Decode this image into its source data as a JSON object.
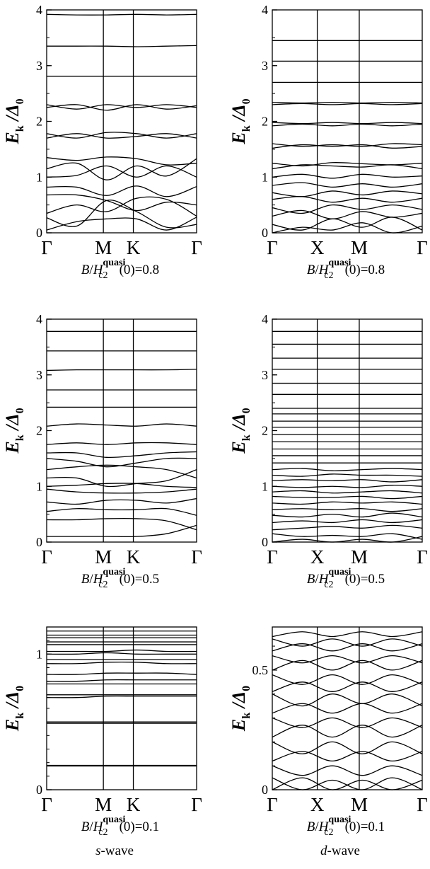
{
  "chart_data": [
    {
      "id": "s-wave-0.8",
      "type": "line",
      "kpath": [
        "Γ",
        "M",
        "K",
        "Γ"
      ],
      "ylabel": {
        "main": "E",
        "sub": "k",
        "denom": "/Δ",
        "denom_sub": "0"
      },
      "ylim": [
        0,
        4
      ],
      "yticks": [
        {
          "v": 0,
          "label": "0"
        },
        {
          "v": 1,
          "label": "1"
        },
        {
          "v": 2,
          "label": "2"
        },
        {
          "v": 3,
          "label": "3"
        },
        {
          "v": 4,
          "label": "4"
        }
      ],
      "caption": {
        "prefix": "B/H",
        "sup": "quasi",
        "sub": "c2",
        "suffix": "(0)=0.8"
      },
      "bands": [
        [
          0.05,
          0.2,
          0.25,
          0.25,
          0.05,
          0.28
        ],
        [
          0.27,
          0.12,
          0.58,
          0.38,
          0.1,
          0.15
        ],
        [
          0.35,
          0.5,
          0.38,
          0.62,
          0.6,
          0.3
        ],
        [
          0.68,
          0.68,
          0.58,
          0.4,
          0.55,
          0.5
        ],
        [
          0.82,
          0.82,
          0.67,
          0.84,
          0.65,
          0.83
        ],
        [
          1.0,
          1.03,
          1.2,
          1.0,
          1.2,
          1.0
        ],
        [
          1.15,
          1.25,
          0.95,
          1.2,
          1.02,
          1.33
        ],
        [
          1.35,
          1.3,
          1.36,
          1.33,
          1.22,
          1.25
        ],
        [
          1.7,
          1.78,
          1.7,
          1.73,
          1.78,
          1.7
        ],
        [
          1.78,
          1.7,
          1.8,
          1.78,
          1.7,
          1.78
        ],
        [
          2.25,
          2.3,
          2.2,
          2.3,
          2.22,
          2.28
        ],
        [
          2.3,
          2.22,
          2.3,
          2.25,
          2.3,
          2.25
        ],
        [
          2.81,
          2.81,
          2.81,
          2.81,
          2.81,
          2.81
        ],
        [
          3.35,
          3.35,
          3.35,
          3.34,
          3.35,
          3.36
        ],
        [
          3.92,
          3.91,
          3.91,
          3.92,
          3.91,
          3.92
        ]
      ]
    },
    {
      "id": "d-wave-0.8",
      "type": "line",
      "kpath": [
        "Γ",
        "X",
        "M",
        "Γ"
      ],
      "ylabel": {
        "main": "E",
        "sub": "k",
        "denom": "/Δ",
        "denom_sub": "0"
      },
      "ylim": [
        0,
        4
      ],
      "yticks": [
        {
          "v": 0,
          "label": "0"
        },
        {
          "v": 1,
          "label": "1"
        },
        {
          "v": 2,
          "label": "2"
        },
        {
          "v": 3,
          "label": "3"
        },
        {
          "v": 4,
          "label": "4"
        }
      ],
      "caption": {
        "prefix": "B/H",
        "sup": "quasi",
        "sub": "c2",
        "suffix": "(0)=0.8"
      },
      "bands": [
        [
          0.0,
          0.1,
          0.05,
          0.18,
          0.0,
          0.12
        ],
        [
          0.15,
          0.05,
          0.25,
          0.1,
          0.28,
          0.05
        ],
        [
          0.3,
          0.4,
          0.25,
          0.38,
          0.28,
          0.35
        ],
        [
          0.45,
          0.35,
          0.5,
          0.42,
          0.5,
          0.42
        ],
        [
          0.6,
          0.65,
          0.55,
          0.62,
          0.55,
          0.62
        ],
        [
          0.72,
          0.65,
          0.75,
          0.68,
          0.75,
          0.7
        ],
        [
          0.85,
          0.9,
          0.82,
          0.88,
          0.82,
          0.88
        ],
        [
          1.0,
          1.05,
          0.98,
          1.05,
          1.0,
          1.02
        ],
        [
          1.15,
          1.22,
          1.2,
          1.18,
          1.22,
          1.15
        ],
        [
          1.25,
          1.2,
          1.26,
          1.24,
          1.22,
          1.25
        ],
        [
          1.52,
          1.58,
          1.55,
          1.58,
          1.52,
          1.55
        ],
        [
          1.6,
          1.55,
          1.58,
          1.55,
          1.6,
          1.58
        ],
        [
          1.92,
          1.95,
          1.92,
          1.95,
          1.92,
          1.95
        ],
        [
          1.98,
          1.96,
          1.98,
          1.96,
          1.98,
          1.96
        ],
        [
          2.3,
          2.32,
          2.3,
          2.32,
          2.3,
          2.32
        ],
        [
          2.34,
          2.33,
          2.34,
          2.33,
          2.34,
          2.33
        ],
        [
          2.7,
          2.7,
          2.7,
          2.7,
          2.7,
          2.7
        ],
        [
          3.08,
          3.08,
          3.08,
          3.08,
          3.08,
          3.08
        ],
        [
          3.45,
          3.45,
          3.45,
          3.45,
          3.45,
          3.45
        ]
      ]
    },
    {
      "id": "s-wave-0.5",
      "type": "line",
      "kpath": [
        "Γ",
        "M",
        "K",
        "Γ"
      ],
      "ylabel": {
        "main": "E",
        "sub": "k",
        "denom": "/Δ",
        "denom_sub": "0"
      },
      "ylim": [
        0,
        4
      ],
      "yticks": [
        {
          "v": 0,
          "label": "0"
        },
        {
          "v": 1,
          "label": "1"
        },
        {
          "v": 2,
          "label": "2"
        },
        {
          "v": 3,
          "label": "3"
        },
        {
          "v": 4,
          "label": "4"
        }
      ],
      "caption": {
        "prefix": "B/H",
        "sup": "quasi",
        "sub": "c2",
        "suffix": "(0)=0.5"
      },
      "bands": [
        [
          0.1,
          0.1,
          0.1,
          0.1,
          0.15,
          0.3
        ],
        [
          0.4,
          0.4,
          0.42,
          0.42,
          0.38,
          0.22
        ],
        [
          0.55,
          0.6,
          0.58,
          0.58,
          0.6,
          0.48
        ],
        [
          0.72,
          0.68,
          0.75,
          0.75,
          0.7,
          0.78
        ],
        [
          0.95,
          0.9,
          0.88,
          0.88,
          0.9,
          0.95
        ],
        [
          1.0,
          1.02,
          1.05,
          1.05,
          1.0,
          0.98
        ],
        [
          1.15,
          1.15,
          1.0,
          1.05,
          1.1,
          1.3
        ],
        [
          1.3,
          1.35,
          1.38,
          1.35,
          1.3,
          1.15
        ],
        [
          1.5,
          1.45,
          1.35,
          1.42,
          1.5,
          1.5
        ],
        [
          1.6,
          1.6,
          1.52,
          1.55,
          1.6,
          1.62
        ],
        [
          1.75,
          1.78,
          1.75,
          1.78,
          1.78,
          1.75
        ],
        [
          2.08,
          2.12,
          2.1,
          2.08,
          2.12,
          2.08
        ],
        [
          2.42,
          2.42,
          2.42,
          2.42,
          2.42,
          2.42
        ],
        [
          2.73,
          2.73,
          2.73,
          2.73,
          2.73,
          2.73
        ],
        [
          3.08,
          3.09,
          3.09,
          3.09,
          3.09,
          3.1
        ],
        [
          3.43,
          3.43,
          3.43,
          3.43,
          3.43,
          3.43
        ],
        [
          3.78,
          3.78,
          3.78,
          3.78,
          3.78,
          3.78
        ]
      ]
    },
    {
      "id": "d-wave-0.5",
      "type": "line",
      "kpath": [
        "Γ",
        "X",
        "M",
        "Γ"
      ],
      "ylabel": {
        "main": "E",
        "sub": "k",
        "denom": "/Δ",
        "denom_sub": "0"
      },
      "ylim": [
        0,
        4
      ],
      "yticks": [
        {
          "v": 0,
          "label": "0"
        },
        {
          "v": 1,
          "label": "1"
        },
        {
          "v": 2,
          "label": "2"
        },
        {
          "v": 3,
          "label": "3"
        },
        {
          "v": 4,
          "label": "4"
        }
      ],
      "caption": {
        "prefix": "B/H",
        "sup": "quasi",
        "sub": "c2",
        "suffix": "(0)=0.5"
      },
      "bands": [
        [
          0.0,
          0.05,
          0.0,
          0.05,
          0.0,
          0.1
        ],
        [
          0.15,
          0.1,
          0.12,
          0.1,
          0.15,
          0.05
        ],
        [
          0.22,
          0.25,
          0.28,
          0.25,
          0.3,
          0.25
        ],
        [
          0.35,
          0.38,
          0.35,
          0.4,
          0.35,
          0.4
        ],
        [
          0.48,
          0.45,
          0.5,
          0.45,
          0.52,
          0.45
        ],
        [
          0.58,
          0.6,
          0.58,
          0.6,
          0.55,
          0.6
        ],
        [
          0.7,
          0.68,
          0.72,
          0.7,
          0.72,
          0.68
        ],
        [
          0.82,
          0.8,
          0.8,
          0.82,
          0.78,
          0.82
        ],
        [
          0.9,
          0.92,
          0.88,
          0.9,
          0.92,
          0.88
        ],
        [
          1.0,
          0.98,
          1.0,
          0.98,
          1.02,
          1.0
        ],
        [
          1.1,
          1.12,
          1.1,
          1.12,
          1.08,
          1.12
        ],
        [
          1.2,
          1.18,
          1.22,
          1.2,
          1.2,
          1.18
        ],
        [
          1.3,
          1.32,
          1.28,
          1.3,
          1.32,
          1.3
        ],
        [
          1.42,
          1.42,
          1.42,
          1.42,
          1.42,
          1.42
        ],
        [
          1.55,
          1.55,
          1.55,
          1.55,
          1.55,
          1.55
        ],
        [
          1.67,
          1.67,
          1.67,
          1.67,
          1.67,
          1.67
        ],
        [
          1.8,
          1.8,
          1.8,
          1.8,
          1.8,
          1.8
        ],
        [
          1.93,
          1.93,
          1.93,
          1.93,
          1.93,
          1.93
        ],
        [
          2.06,
          2.06,
          2.06,
          2.06,
          2.06,
          2.06
        ],
        [
          2.17,
          2.17,
          2.17,
          2.17,
          2.17,
          2.17
        ],
        [
          2.3,
          2.3,
          2.3,
          2.3,
          2.3,
          2.3
        ],
        [
          2.4,
          2.4,
          2.4,
          2.4,
          2.4,
          2.4
        ],
        [
          2.65,
          2.65,
          2.65,
          2.65,
          2.65,
          2.65
        ],
        [
          2.85,
          2.85,
          2.85,
          2.85,
          2.85,
          2.85
        ],
        [
          3.1,
          3.1,
          3.1,
          3.1,
          3.1,
          3.1
        ],
        [
          3.3,
          3.3,
          3.3,
          3.3,
          3.3,
          3.3
        ],
        [
          3.55,
          3.55,
          3.55,
          3.55,
          3.55,
          3.55
        ],
        [
          3.78,
          3.78,
          3.78,
          3.78,
          3.78,
          3.78
        ]
      ]
    },
    {
      "id": "s-wave-0.1",
      "type": "line",
      "kpath": [
        "Γ",
        "M",
        "K",
        "Γ"
      ],
      "ylabel": {
        "main": "E",
        "sub": "k",
        "denom": "/Δ",
        "denom_sub": "0"
      },
      "ylim": [
        0,
        1.2
      ],
      "yticks": [
        {
          "v": 0,
          "label": "0"
        },
        {
          "v": 1,
          "label": "1"
        }
      ],
      "caption": {
        "prefix": "B/H",
        "sup": "quasi",
        "sub": "c2",
        "suffix": "(0)=0.1"
      },
      "bottom_label": {
        "italic": "s",
        "rest": "-wave"
      },
      "bands": [
        [
          0.175,
          0.175,
          0.175,
          0.175,
          0.175,
          0.175
        ],
        [
          0.18,
          0.18,
          0.18,
          0.18,
          0.18,
          0.18
        ],
        [
          0.49,
          0.49,
          0.49,
          0.49,
          0.49,
          0.49
        ],
        [
          0.5,
          0.5,
          0.5,
          0.5,
          0.5,
          0.5
        ],
        [
          0.68,
          0.68,
          0.69,
          0.69,
          0.69,
          0.69
        ],
        [
          0.7,
          0.7,
          0.7,
          0.7,
          0.7,
          0.7
        ],
        [
          0.78,
          0.78,
          0.78,
          0.78,
          0.78,
          0.78
        ],
        [
          0.8,
          0.8,
          0.81,
          0.81,
          0.81,
          0.81
        ],
        [
          0.85,
          0.85,
          0.86,
          0.86,
          0.86,
          0.85
        ],
        [
          0.93,
          0.93,
          0.94,
          0.94,
          0.93,
          0.93
        ],
        [
          0.96,
          0.96,
          0.96,
          0.96,
          0.96,
          0.96
        ],
        [
          1.0,
          1.0,
          1.01,
          1.0,
          1.0,
          1.0
        ],
        [
          1.02,
          1.02,
          1.02,
          1.03,
          1.02,
          1.02
        ],
        [
          1.07,
          1.07,
          1.07,
          1.07,
          1.07,
          1.07
        ],
        [
          1.09,
          1.09,
          1.09,
          1.09,
          1.09,
          1.09
        ],
        [
          1.12,
          1.12,
          1.12,
          1.12,
          1.12,
          1.12
        ],
        [
          1.14,
          1.14,
          1.14,
          1.14,
          1.14,
          1.14
        ],
        [
          1.17,
          1.17,
          1.17,
          1.17,
          1.17,
          1.17
        ]
      ]
    },
    {
      "id": "d-wave-0.1",
      "type": "line",
      "kpath": [
        "Γ",
        "X",
        "M",
        "Γ"
      ],
      "ylabel": {
        "main": "E",
        "sub": "k",
        "denom": "/Δ",
        "denom_sub": "0"
      },
      "ylim": [
        0,
        0.68
      ],
      "yticks": [
        {
          "v": 0,
          "label": "0"
        },
        {
          "v": 0.5,
          "label": "0.5"
        }
      ],
      "caption": {
        "prefix": "B/H",
        "sup": "quasi",
        "sub": "c2",
        "suffix": "(0)=0.1"
      },
      "bottom_label": {
        "italic": "d",
        "rest": "-wave"
      },
      "bands": [
        [
          0.0,
          0.05,
          0.0,
          0.04,
          0.0,
          0.04
        ],
        [
          0.05,
          0.0,
          0.04,
          0.0,
          0.05,
          0.0
        ],
        [
          0.1,
          0.06,
          0.1,
          0.06,
          0.1,
          0.06
        ],
        [
          0.12,
          0.16,
          0.12,
          0.16,
          0.12,
          0.16
        ],
        [
          0.2,
          0.15,
          0.2,
          0.15,
          0.2,
          0.15
        ],
        [
          0.22,
          0.27,
          0.22,
          0.27,
          0.22,
          0.27
        ],
        [
          0.3,
          0.26,
          0.3,
          0.26,
          0.3,
          0.26
        ],
        [
          0.32,
          0.36,
          0.32,
          0.36,
          0.32,
          0.36
        ],
        [
          0.4,
          0.35,
          0.4,
          0.36,
          0.4,
          0.35
        ],
        [
          0.41,
          0.45,
          0.41,
          0.45,
          0.41,
          0.45
        ],
        [
          0.48,
          0.44,
          0.48,
          0.44,
          0.48,
          0.44
        ],
        [
          0.5,
          0.54,
          0.5,
          0.54,
          0.5,
          0.54
        ],
        [
          0.56,
          0.53,
          0.56,
          0.53,
          0.56,
          0.53
        ],
        [
          0.58,
          0.61,
          0.58,
          0.61,
          0.58,
          0.61
        ],
        [
          0.63,
          0.6,
          0.63,
          0.6,
          0.63,
          0.6
        ],
        [
          0.64,
          0.66,
          0.64,
          0.66,
          0.64,
          0.66
        ]
      ]
    }
  ]
}
